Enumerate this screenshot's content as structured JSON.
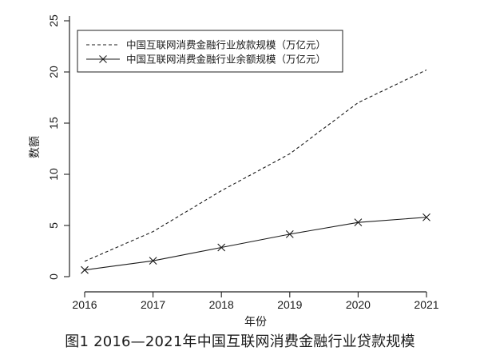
{
  "caption": "图1  2016—2021年中国互联网消费金融行业贷款规模",
  "chart_data": {
    "type": "line",
    "title": "",
    "xlabel": "年份",
    "ylabel": "数额",
    "x": [
      2016,
      2017,
      2018,
      2019,
      2020,
      2021
    ],
    "x_tick_labels": [
      "2016",
      "2017",
      "2018",
      "2019",
      "2020",
      "2021"
    ],
    "y_ticks": [
      0,
      5,
      10,
      15,
      20,
      25
    ],
    "y_tick_labels": [
      "0",
      "5",
      "10",
      "15",
      "20",
      "25"
    ],
    "xlim": [
      2016,
      2021
    ],
    "ylim": [
      0,
      25
    ],
    "grid": false,
    "legend_position": "top-left",
    "series": [
      {
        "name": "中国互联网消费金融行业放款规模（万亿元）",
        "style": "dashed",
        "marker": "none",
        "color": "#1a1a1a",
        "values": [
          1.5,
          4.4,
          8.4,
          12.0,
          17.0,
          20.2
        ]
      },
      {
        "name": "中国互联网消费金融行业余额规模（万亿元）",
        "style": "solid",
        "marker": "x",
        "color": "#1a1a1a",
        "values": [
          0.65,
          1.55,
          2.85,
          4.15,
          5.3,
          5.8
        ]
      }
    ]
  }
}
